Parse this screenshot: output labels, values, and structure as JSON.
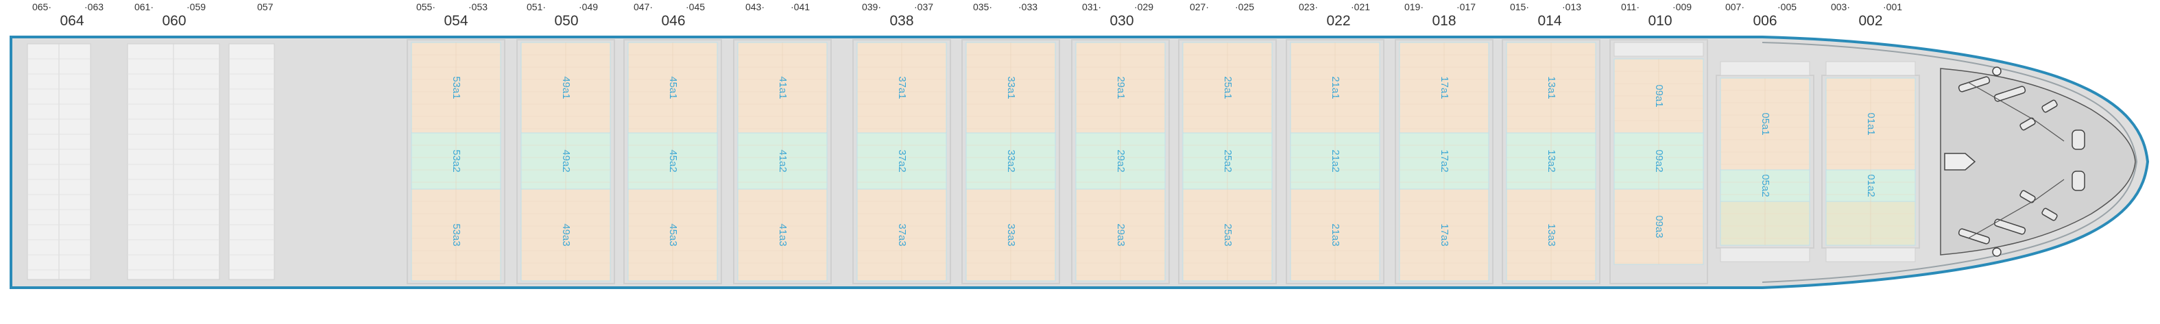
{
  "bay_labels": [
    {
      "main": "064",
      "left": "065·",
      "right": "·063"
    },
    {
      "main": "060",
      "left": "061·",
      "right": "·059"
    },
    {
      "main": "",
      "left": "",
      "right": "057"
    },
    {
      "main": "054",
      "left": "055·",
      "right": "·053"
    },
    {
      "main": "050",
      "left": "051·",
      "right": "·049"
    },
    {
      "main": "046",
      "left": "047·",
      "right": "·045"
    },
    {
      "main": "",
      "left": "043·",
      "right": "·041"
    },
    {
      "main": "038",
      "left": "039·",
      "right": "·037"
    },
    {
      "main": "",
      "left": "035·",
      "right": "·033"
    },
    {
      "main": "030",
      "left": "031·",
      "right": "·029"
    },
    {
      "main": "",
      "left": "027·",
      "right": "·025"
    },
    {
      "main": "022",
      "left": "023·",
      "right": "·021"
    },
    {
      "main": "018",
      "left": "019·",
      "right": "·017"
    },
    {
      "main": "014",
      "left": "015·",
      "right": "·013"
    },
    {
      "main": "010",
      "left": "011·",
      "right": "·009"
    },
    {
      "main": "006",
      "left": "007·",
      "right": "·005"
    },
    {
      "main": "002",
      "left": "003·",
      "right": "·001"
    }
  ],
  "holds": [
    {
      "labels": [
        "53a1",
        "53a2",
        "53a3"
      ]
    },
    {
      "labels": [
        "49a1",
        "49a2",
        "49a3"
      ]
    },
    {
      "labels": [
        "45a1",
        "45a2",
        "45a3"
      ]
    },
    {
      "labels": [
        "41a1",
        "41a2",
        "41a3"
      ]
    },
    {
      "labels": [
        "37a1",
        "37a2",
        "37a3"
      ]
    },
    {
      "labels": [
        "33a1",
        "33a2",
        "33a3"
      ]
    },
    {
      "labels": [
        "29a1",
        "29a2",
        "29a3"
      ]
    },
    {
      "labels": [
        "25a1",
        "25a2",
        "25a3"
      ]
    },
    {
      "labels": [
        "21a1",
        "21a2",
        "21a3"
      ]
    },
    {
      "labels": [
        "17a1",
        "17a2",
        "17a3"
      ]
    },
    {
      "labels": [
        "13a1",
        "13a2",
        "13a3"
      ]
    },
    {
      "labels": [
        "09a1",
        "09a2",
        "09a3"
      ]
    },
    {
      "labels": [
        "05a1",
        "05a2",
        ""
      ]
    },
    {
      "labels": [
        "01a1",
        "01a2",
        ""
      ]
    }
  ],
  "colors": {
    "hull_outline": "#2a8bb8",
    "deck": "#dcdcdc",
    "hold_peach": "#f5e3cf",
    "hold_green": "#d8f0e2",
    "hold_olive": "#e6e7cf",
    "label_text": "#3aa7d6",
    "bay_text": "#333333"
  }
}
